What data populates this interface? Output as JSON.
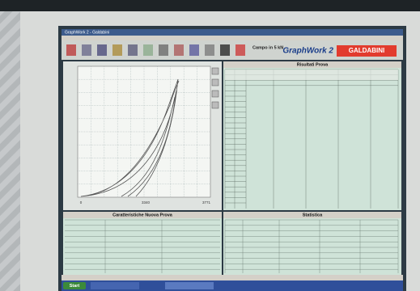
{
  "window": {
    "title": "GraphWork 2 - Galdabini"
  },
  "toolbar": {
    "scale": "Campo in 5 kN",
    "brand": "GraphWork 2",
    "logo": "GALDABINI"
  },
  "chart": {
    "x_ticks": [
      "0",
      "3340",
      "3771"
    ]
  },
  "results": {
    "title": "Risultati Prova"
  },
  "new_test": {
    "title": "Caratteristiche Nuova Prova"
  },
  "stats": {
    "title": "Statistica"
  },
  "taskbar": {
    "start": "Start"
  }
}
